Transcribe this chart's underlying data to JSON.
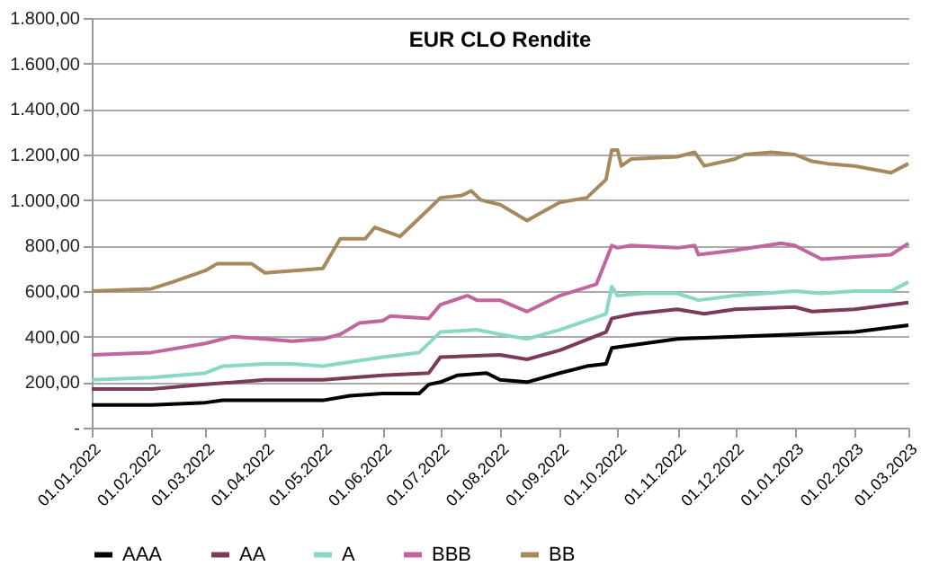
{
  "chart_data": {
    "type": "line",
    "title": "EUR CLO Rendite",
    "xlim": [
      "2022-01-01",
      "2023-03-01"
    ],
    "xticks": [
      {
        "value": "2022-01-01",
        "label": "01.01.2022"
      },
      {
        "value": "2022-02-01",
        "label": "01.02.2022"
      },
      {
        "value": "2022-03-01",
        "label": "01.03.2022"
      },
      {
        "value": "2022-04-01",
        "label": "01.04.2022"
      },
      {
        "value": "2022-05-01",
        "label": "01.05.2022"
      },
      {
        "value": "2022-06-01",
        "label": "01.06.2022"
      },
      {
        "value": "2022-07-01",
        "label": "01.07.2022"
      },
      {
        "value": "2022-08-01",
        "label": "01.08.2022"
      },
      {
        "value": "2022-09-01",
        "label": "01.09.2022"
      },
      {
        "value": "2022-10-01",
        "label": "01.10.2022"
      },
      {
        "value": "2022-11-01",
        "label": "01.11.2022"
      },
      {
        "value": "2022-12-01",
        "label": "01.12.2022"
      },
      {
        "value": "2023-01-01",
        "label": "01.01.2023"
      },
      {
        "value": "2023-02-01",
        "label": "01.02.2023"
      },
      {
        "value": "2023-03-01",
        "label": "01.03.2023"
      }
    ],
    "ylim": [
      0,
      1800
    ],
    "yticks": [
      {
        "value": 0,
        "label": "-"
      },
      {
        "value": 200,
        "label": "200,00"
      },
      {
        "value": 400,
        "label": "400,00"
      },
      {
        "value": 600,
        "label": "600,00"
      },
      {
        "value": 800,
        "label": "800,00"
      },
      {
        "value": 1000,
        "label": "1.000,00"
      },
      {
        "value": 1200,
        "label": "1.200,00"
      },
      {
        "value": 1400,
        "label": "1.400,00"
      },
      {
        "value": 1600,
        "label": "1.600,00"
      },
      {
        "value": 1800,
        "label": "1.800,00"
      }
    ],
    "grid": "y",
    "legend": "bottom",
    "line_style": "solid",
    "marker": "none",
    "series": [
      {
        "name": "AAA",
        "color": "#000000",
        "x": [
          "2022-01-01",
          "2022-02-01",
          "2022-03-01",
          "2022-03-10",
          "2022-04-01",
          "2022-04-10",
          "2022-05-01",
          "2022-05-15",
          "2022-06-01",
          "2022-06-20",
          "2022-06-25",
          "2022-07-01",
          "2022-07-10",
          "2022-07-25",
          "2022-08-01",
          "2022-08-15",
          "2022-09-01",
          "2022-09-15",
          "2022-09-25",
          "2022-09-28",
          "2022-10-15",
          "2022-11-01",
          "2022-12-01",
          "2023-01-01",
          "2023-02-01",
          "2023-03-01"
        ],
        "values": [
          100,
          100,
          110,
          120,
          120,
          120,
          120,
          140,
          150,
          150,
          190,
          200,
          230,
          240,
          210,
          200,
          240,
          270,
          280,
          350,
          370,
          390,
          400,
          410,
          420,
          450
        ]
      },
      {
        "name": "AA",
        "color": "#7a3b5a",
        "x": [
          "2022-01-01",
          "2022-02-01",
          "2022-03-01",
          "2022-04-01",
          "2022-05-01",
          "2022-06-01",
          "2022-06-25",
          "2022-07-01",
          "2022-08-01",
          "2022-08-15",
          "2022-09-01",
          "2022-09-25",
          "2022-09-28",
          "2022-10-10",
          "2022-11-01",
          "2022-11-15",
          "2022-12-01",
          "2023-01-01",
          "2023-01-10",
          "2023-02-01",
          "2023-03-01"
        ],
        "values": [
          170,
          170,
          190,
          210,
          210,
          230,
          240,
          310,
          320,
          300,
          340,
          420,
          480,
          500,
          520,
          500,
          520,
          530,
          510,
          520,
          550
        ]
      },
      {
        "name": "A",
        "color": "#88d8c5",
        "x": [
          "2022-01-01",
          "2022-02-01",
          "2022-03-01",
          "2022-03-10",
          "2022-04-01",
          "2022-04-15",
          "2022-05-01",
          "2022-06-01",
          "2022-06-20",
          "2022-07-01",
          "2022-07-20",
          "2022-08-01",
          "2022-08-15",
          "2022-09-01",
          "2022-09-25",
          "2022-09-28",
          "2022-10-01",
          "2022-10-15",
          "2022-11-01",
          "2022-11-12",
          "2022-12-01",
          "2023-01-01",
          "2023-01-15",
          "2023-02-01",
          "2023-02-20",
          "2023-03-01"
        ],
        "values": [
          210,
          220,
          240,
          270,
          280,
          280,
          270,
          310,
          330,
          420,
          430,
          410,
          390,
          430,
          500,
          620,
          580,
          590,
          590,
          560,
          580,
          600,
          590,
          600,
          600,
          640
        ]
      },
      {
        "name": "BBB",
        "color": "#c2649e",
        "x": [
          "2022-01-01",
          "2022-02-01",
          "2022-03-01",
          "2022-03-15",
          "2022-04-01",
          "2022-04-15",
          "2022-05-01",
          "2022-05-10",
          "2022-05-20",
          "2022-06-01",
          "2022-06-05",
          "2022-06-25",
          "2022-07-01",
          "2022-07-15",
          "2022-07-20",
          "2022-08-01",
          "2022-08-15",
          "2022-09-01",
          "2022-09-20",
          "2022-09-28",
          "2022-10-01",
          "2022-10-08",
          "2022-11-01",
          "2022-11-10",
          "2022-11-12",
          "2022-12-01",
          "2022-12-25",
          "2023-01-01",
          "2023-01-15",
          "2023-02-01",
          "2023-02-20",
          "2023-03-01"
        ],
        "values": [
          320,
          330,
          370,
          400,
          390,
          380,
          390,
          410,
          460,
          470,
          490,
          480,
          540,
          580,
          560,
          560,
          510,
          580,
          630,
          800,
          790,
          800,
          790,
          800,
          760,
          780,
          810,
          800,
          740,
          750,
          760,
          810
        ]
      },
      {
        "name": "BB",
        "color": "#a68a5e",
        "x": [
          "2022-01-01",
          "2022-02-01",
          "2022-02-12",
          "2022-03-01",
          "2022-03-07",
          "2022-03-25",
          "2022-04-01",
          "2022-05-01",
          "2022-05-10",
          "2022-05-23",
          "2022-05-28",
          "2022-06-10",
          "2022-06-25",
          "2022-07-01",
          "2022-07-12",
          "2022-07-17",
          "2022-07-22",
          "2022-08-01",
          "2022-08-15",
          "2022-09-01",
          "2022-09-15",
          "2022-09-25",
          "2022-09-28",
          "2022-10-01",
          "2022-10-03",
          "2022-10-08",
          "2022-11-01",
          "2022-11-10",
          "2022-11-15",
          "2022-12-01",
          "2022-12-06",
          "2022-12-20",
          "2023-01-01",
          "2023-01-10",
          "2023-01-18",
          "2023-02-01",
          "2023-02-20",
          "2023-03-01"
        ],
        "values": [
          600,
          610,
          640,
          690,
          720,
          720,
          680,
          700,
          830,
          830,
          880,
          840,
          960,
          1010,
          1020,
          1040,
          1000,
          980,
          910,
          990,
          1010,
          1090,
          1220,
          1220,
          1150,
          1180,
          1190,
          1210,
          1150,
          1180,
          1200,
          1210,
          1200,
          1170,
          1160,
          1150,
          1120,
          1160
        ]
      }
    ]
  }
}
